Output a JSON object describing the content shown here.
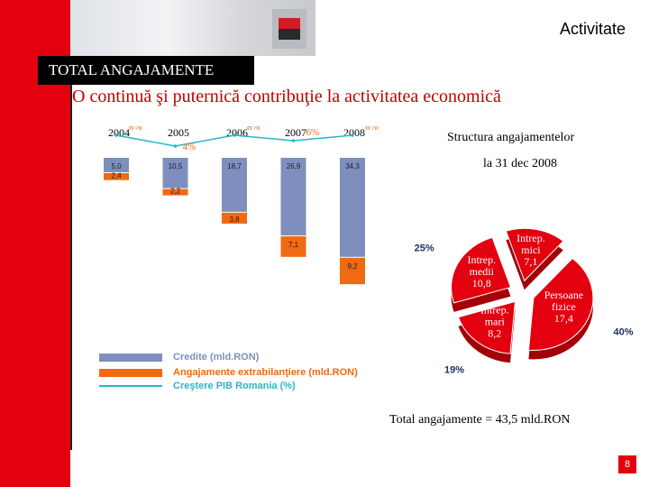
{
  "header": {
    "section_title": "Activitate",
    "banner": "TOTAL ANGAJAMENTE",
    "subtitle": "O continuă şi puternică contribuţie la activitatea economică"
  },
  "colors": {
    "credit": "#7e8fbd",
    "ext": "#f06a12",
    "pib": "#2ab5c8",
    "brand_red": "#e3000f",
    "pie": [
      "#e3000f",
      "#e3000f",
      "#e3000f",
      "#e3000f"
    ]
  },
  "chart_data": [
    {
      "type": "bar",
      "categories": [
        "2004",
        "2005",
        "2006",
        "2007",
        "2008"
      ],
      "series": [
        {
          "name": "Credite (mld.RON)",
          "values": [
            5.0,
            10.5,
            18.7,
            26.9,
            34.3
          ],
          "labels": [
            "5,0",
            "10,5",
            "18,7",
            "26,9",
            "34,3"
          ]
        },
        {
          "name": "Angajamente extrabilanţiere (mld.RON)",
          "values": [
            2.4,
            2.2,
            3.8,
            7.1,
            9.2
          ],
          "labels": [
            "2,4",
            "2,2",
            "3,8",
            "7,1",
            "9,2"
          ]
        },
        {
          "name": "Creştere PIB Romania (%)",
          "values": [
            8,
            4,
            8,
            6,
            8
          ],
          "labels": [
            "8%",
            "4%",
            "8%",
            "6%",
            "8%"
          ]
        }
      ]
    },
    {
      "type": "pie",
      "title": "Structura angajamentelor",
      "subtitle": "la 31 dec 2008",
      "slices": [
        {
          "label": "Intrep. mici",
          "value": 7.1,
          "value_label": "7,1",
          "percent": "16%"
        },
        {
          "label": "Persoane fizice",
          "value": 17.4,
          "value_label": "17,4",
          "percent": "40%"
        },
        {
          "label": "Intrep. mari",
          "value": 8.2,
          "value_label": "8,2",
          "percent": "19%"
        },
        {
          "label": "Intrep. medii",
          "value": 10.8,
          "value_label": "10,8",
          "percent": "25%"
        }
      ],
      "total_text": "Total angajamente = 43,5 mld.RON"
    }
  ],
  "page_number": "8"
}
